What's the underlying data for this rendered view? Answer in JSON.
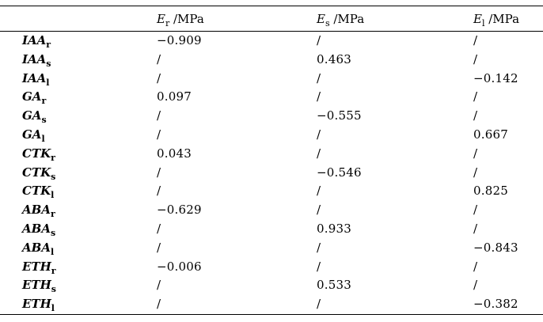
{
  "table": {
    "colors": {
      "rule": "#000000",
      "text": "#000000",
      "background": "#ffffff"
    },
    "columns": [
      {
        "symbol": "E",
        "sub": "r",
        "unit": " /MPa"
      },
      {
        "symbol": "E",
        "sub": "s",
        "unit": " /MPa"
      },
      {
        "symbol": "E",
        "sub": "l",
        "unit": " /MPa"
      }
    ],
    "rows": [
      {
        "label": "IAA",
        "sub": "r",
        "values": [
          "−0.909",
          "/",
          "/"
        ]
      },
      {
        "label": "IAA",
        "sub": "s",
        "values": [
          "/",
          "0.463",
          "/"
        ]
      },
      {
        "label": "IAA",
        "sub": "l",
        "values": [
          "/",
          "/",
          "−0.142"
        ]
      },
      {
        "label": "GA",
        "sub": "r",
        "values": [
          "0.097",
          "/",
          "/"
        ]
      },
      {
        "label": "GA",
        "sub": "s",
        "values": [
          "/",
          "−0.555",
          "/"
        ]
      },
      {
        "label": "GA",
        "sub": "l",
        "values": [
          "/",
          "/",
          "0.667"
        ]
      },
      {
        "label": "CTK",
        "sub": "r",
        "values": [
          "0.043",
          "/",
          "/"
        ]
      },
      {
        "label": "CTK",
        "sub": "s",
        "values": [
          "/",
          "−0.546",
          "/"
        ]
      },
      {
        "label": "CTK",
        "sub": "l",
        "values": [
          "/",
          "/",
          "0.825"
        ]
      },
      {
        "label": "ABA",
        "sub": "r",
        "values": [
          "−0.629",
          "/",
          "/"
        ]
      },
      {
        "label": "ABA",
        "sub": "s",
        "values": [
          "/",
          "0.933",
          "/"
        ]
      },
      {
        "label": "ABA",
        "sub": "l",
        "values": [
          "/",
          "/",
          "−0.843"
        ]
      },
      {
        "label": "ETH",
        "sub": "r",
        "values": [
          "−0.006",
          "/",
          "/"
        ]
      },
      {
        "label": "ETH",
        "sub": "s",
        "values": [
          "/",
          "0.533",
          "/"
        ]
      },
      {
        "label": "ETH",
        "sub": "l",
        "values": [
          "/",
          "/",
          "−0.382"
        ]
      }
    ]
  }
}
